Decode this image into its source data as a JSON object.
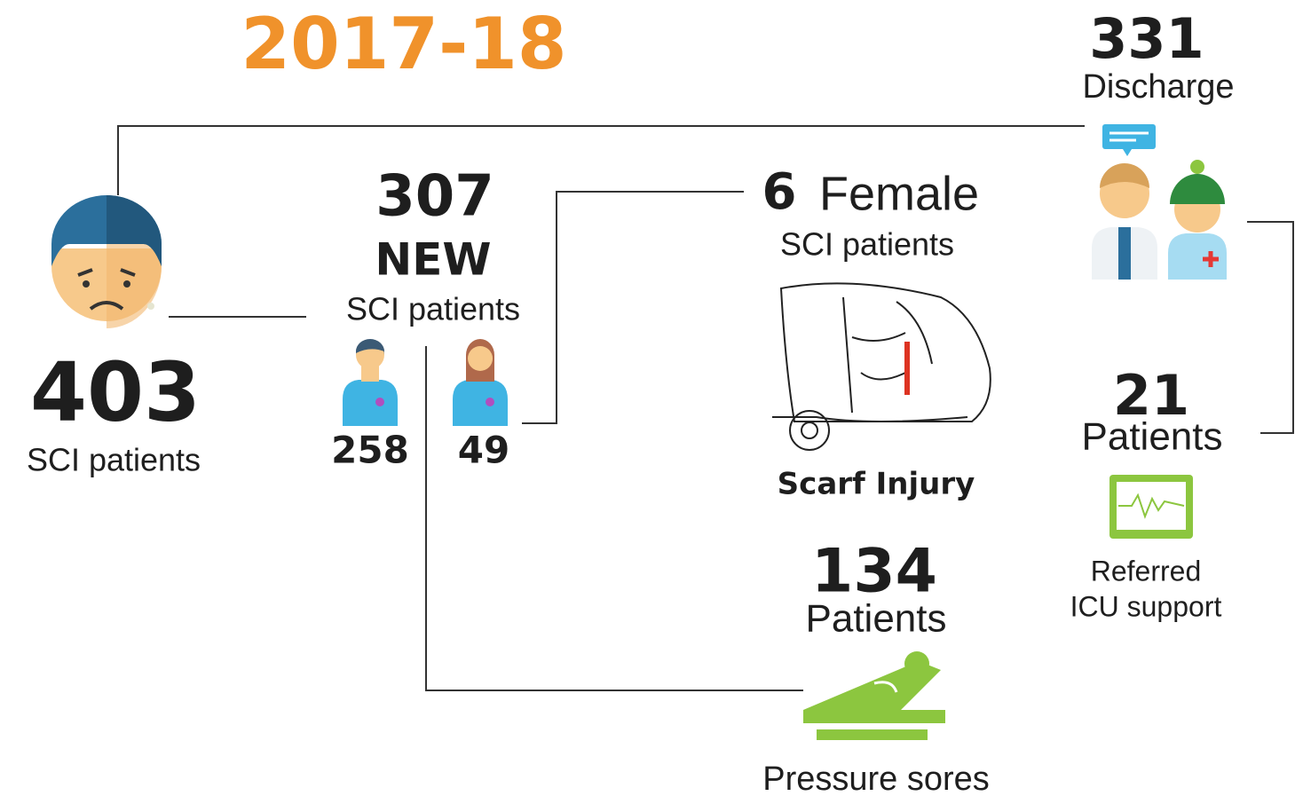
{
  "title": "2017-18",
  "total": {
    "count": 403,
    "label": "SCI patients"
  },
  "new_patients": {
    "count": 307,
    "tag": "NEW",
    "label": "SCI patients",
    "male": 258,
    "female": 49
  },
  "female_injury": {
    "count": 6,
    "label": "Female",
    "sublabel": "SCI patients",
    "caption": "Scarf Injury"
  },
  "pressure_sores": {
    "count": 134,
    "label": "Patients",
    "caption": "Pressure sores"
  },
  "discharge": {
    "count": 331,
    "label": "Discharge"
  },
  "icu": {
    "count": 21,
    "label": "Patients",
    "caption_lines": [
      "Referred",
      "ICU support"
    ]
  }
}
